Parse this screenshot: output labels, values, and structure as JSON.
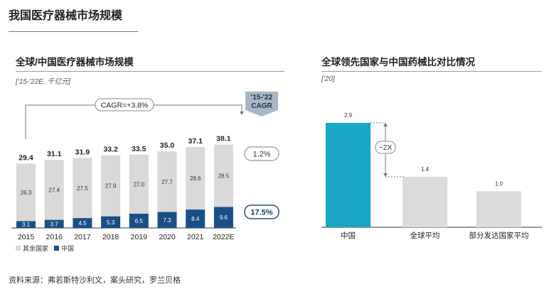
{
  "page": {
    "title": "我国医疗器械市场规模",
    "source": "资料来源：弗若斯特沙利文，案头研究，罗兰贝格"
  },
  "left_panel": {
    "title": "全球/中国医疗器械市场规模",
    "subtitle": "['15-'22E, 千亿元]",
    "cagr_header_line1": "'15-'22",
    "cagr_header_line2": "CAGR",
    "overall_cagr": "CAGR=+3.8%",
    "other_cagr": "1.2%",
    "china_cagr": "17.5%"
  },
  "right_panel": {
    "title": "全球领先国家与中国药械比对比情况",
    "subtitle": "['20]",
    "ratio_label": "~2X"
  },
  "colors": {
    "china": "#1a4f86",
    "other": "#d9d9d9",
    "highlight": "#18a6c4",
    "gray_bar": "#dcdcdc",
    "cagr_box": "#a6b6c4"
  },
  "chart_data": [
    {
      "type": "bar",
      "stacked": true,
      "title": "全球/中国医疗器械市场规模",
      "categories": [
        "2015",
        "2016",
        "2017",
        "2018",
        "2019",
        "2020",
        "2021",
        "2022E"
      ],
      "series": [
        {
          "name": "中国",
          "values": [
            3.1,
            3.7,
            4.5,
            5.3,
            6.5,
            7.3,
            8.4,
            9.6
          ]
        },
        {
          "name": "其余国家",
          "values": [
            26.3,
            27.4,
            27.5,
            27.9,
            27.0,
            27.7,
            28.6,
            28.5
          ]
        }
      ],
      "totals": [
        29.4,
        31.1,
        31.9,
        33.2,
        33.5,
        35.0,
        37.1,
        38.1
      ],
      "ylim": [
        0,
        40
      ],
      "legend": "bottom-left"
    },
    {
      "type": "bar",
      "title": "全球领先国家与中国药械比对比情况",
      "categories": [
        "中国",
        "全球平均",
        "部分发达国家平均"
      ],
      "values": [
        2.9,
        1.4,
        1.0
      ],
      "value_labels": [
        "2.9",
        "1.4",
        "1.0"
      ],
      "ylim": [
        0,
        3.2
      ]
    }
  ]
}
